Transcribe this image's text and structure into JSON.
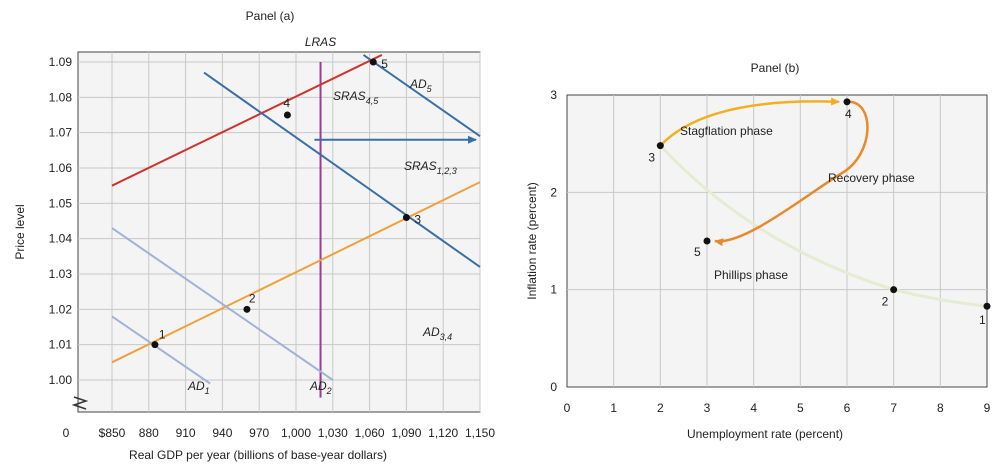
{
  "colors": {
    "plot_bg": "#f4f4f4",
    "grid": "#c8c8c8",
    "lras": "#9c3b9a",
    "sras45": "#d0342c",
    "sras123": "#f2a03a",
    "ad_dark": "#3a6fa6",
    "ad_light": "#9fb3d6",
    "phillips": "#e4ecd2",
    "stagflation": "#f2b020",
    "recovery": "#e88a2a",
    "point": "#111111"
  },
  "panel_a": {
    "title": "Panel (a)",
    "xlabel": "Real GDP per year (billions of base-year dollars)",
    "ylabel": "Price level",
    "x_origin_label": "0",
    "x_ticks": [
      "$850",
      "880",
      "910",
      "940",
      "970",
      "1,000",
      "1,030",
      "1,060",
      "1,090",
      "1,120",
      "1,150"
    ],
    "y_ticks": [
      "1.00",
      "1.01",
      "1.02",
      "1.03",
      "1.04",
      "1.05",
      "1.06",
      "1.07",
      "1.08",
      "1.09"
    ],
    "lras_label": "LRAS",
    "curve_labels": {
      "ad1": {
        "main": "AD",
        "sub": "1"
      },
      "ad2": {
        "main": "AD",
        "sub": "2"
      },
      "ad34": {
        "main": "AD",
        "sub": "3,4"
      },
      "ad5": {
        "main": "AD",
        "sub": "5"
      },
      "sras45": {
        "main": "SRAS",
        "sub": "4,5"
      },
      "sras123": {
        "main": "SRAS",
        "sub": "1,2,3"
      }
    },
    "point_labels": [
      "1",
      "2",
      "3",
      "4",
      "5"
    ]
  },
  "panel_b": {
    "title": "Panel (b)",
    "xlabel": "Unemployment rate (percent)",
    "ylabel": "Inflation rate (percent)",
    "x_ticks": [
      "0",
      "1",
      "2",
      "3",
      "4",
      "5",
      "6",
      "7",
      "8",
      "9"
    ],
    "y_ticks": [
      "0",
      "1",
      "2",
      "3"
    ],
    "phase_labels": {
      "stagflation": "Stagflation phase",
      "recovery": "Recovery phase",
      "phillips": "Phillips phase"
    },
    "point_labels": [
      "1",
      "2",
      "3",
      "4",
      "5"
    ]
  },
  "chart_data": [
    {
      "type": "line",
      "title": "Panel (a)",
      "xlabel": "Real GDP per year (billions of base-year dollars)",
      "ylabel": "Price level",
      "xlim": [
        850,
        1150
      ],
      "ylim": [
        1.0,
        1.09
      ],
      "grid": true,
      "series": [
        {
          "name": "LRAS",
          "x": [
            1020,
            1020
          ],
          "y": [
            0.995,
            1.09
          ]
        },
        {
          "name": "SRAS4,5",
          "x": [
            850,
            1070
          ],
          "y": [
            1.055,
            1.092
          ]
        },
        {
          "name": "SRAS1,2,3",
          "x": [
            850,
            1150
          ],
          "y": [
            1.005,
            1.056
          ]
        },
        {
          "name": "AD1",
          "x": [
            850,
            930
          ],
          "y": [
            1.018,
            0.999
          ]
        },
        {
          "name": "AD2",
          "x": [
            850,
            1030
          ],
          "y": [
            1.043,
            1.0
          ]
        },
        {
          "name": "AD3,4",
          "x": [
            925,
            1150
          ],
          "y": [
            1.087,
            1.032
          ]
        },
        {
          "name": "AD5",
          "x": [
            1055,
            1150
          ],
          "y": [
            1.092,
            1.069
          ]
        }
      ],
      "points": [
        {
          "label": "1",
          "x": 885,
          "y": 1.01
        },
        {
          "label": "2",
          "x": 960,
          "y": 1.02
        },
        {
          "label": "3",
          "x": 1090,
          "y": 1.046
        },
        {
          "label": "4",
          "x": 993,
          "y": 1.075
        },
        {
          "label": "5",
          "x": 1063,
          "y": 1.09
        }
      ],
      "arrow": {
        "from": [
          1015,
          1.068
        ],
        "to": [
          1150,
          1.068
        ]
      }
    },
    {
      "type": "line",
      "title": "Panel (b)",
      "xlabel": "Unemployment rate (percent)",
      "ylabel": "Inflation rate (percent)",
      "xlim": [
        0,
        9
      ],
      "ylim": [
        0,
        3
      ],
      "grid": true,
      "points": [
        {
          "label": "1",
          "x": 9,
          "y": 0.83
        },
        {
          "label": "2",
          "x": 7,
          "y": 1.0
        },
        {
          "label": "3",
          "x": 2,
          "y": 2.48
        },
        {
          "label": "4",
          "x": 6,
          "y": 2.93
        },
        {
          "label": "5",
          "x": 3,
          "y": 1.5
        }
      ],
      "paths": [
        {
          "name": "Phillips phase",
          "from": "1",
          "to": "3"
        },
        {
          "name": "Stagflation phase",
          "from": "3",
          "to": "4"
        },
        {
          "name": "Recovery phase",
          "from": "4",
          "to": "5"
        }
      ]
    }
  ]
}
